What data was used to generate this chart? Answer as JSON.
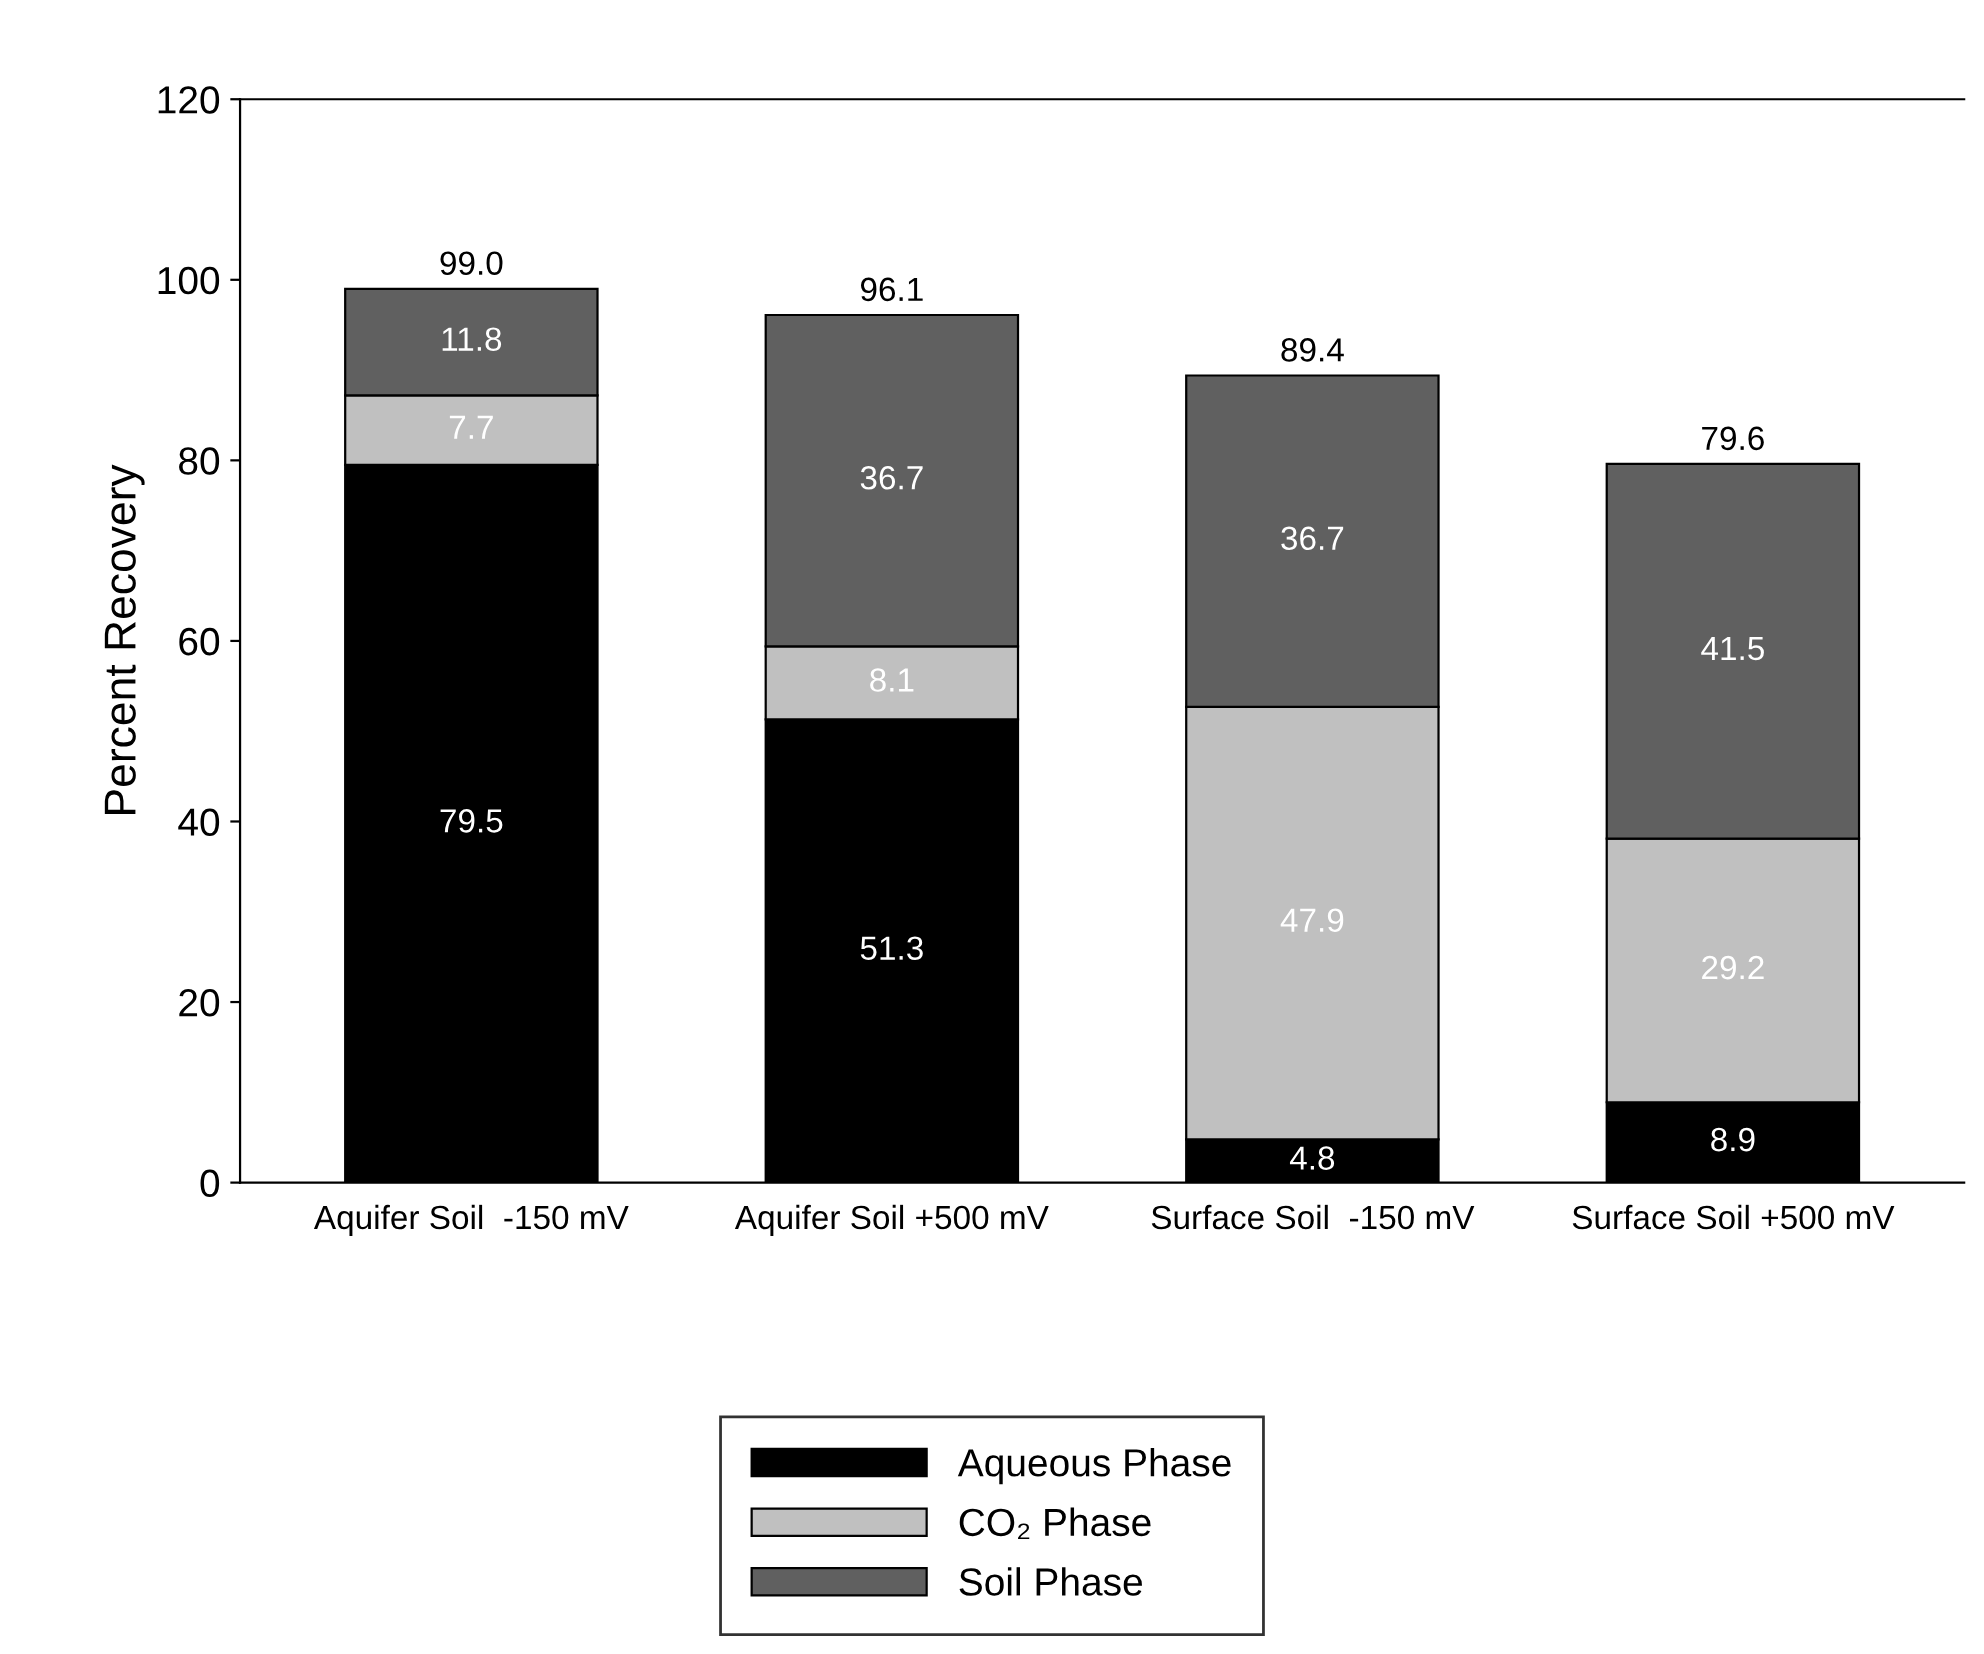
{
  "chart_data": {
    "type": "bar",
    "stacked": true,
    "ylabel": "Percent Recovery",
    "categories": [
      "Aquifer Soil  -150 mV",
      "Aquifer Soil +500 mV",
      "Surface Soil  -150 mV",
      "Surface Soil +500 mV"
    ],
    "series": [
      {
        "name": "Aqueous Phase",
        "color": "#000000",
        "values": [
          79.5,
          51.3,
          4.8,
          8.9
        ]
      },
      {
        "name": "CO₂ Phase",
        "color": "#c0c0c0",
        "values": [
          7.7,
          8.1,
          47.9,
          29.2
        ]
      },
      {
        "name": "Soil Phase",
        "color": "#606060",
        "values": [
          11.8,
          36.7,
          36.7,
          41.5
        ]
      }
    ],
    "totals": [
      "99.0",
      "96.1",
      "89.4",
      "79.6"
    ],
    "data_labels": true,
    "ylim": [
      0,
      120
    ],
    "yticks": [
      0,
      20,
      40,
      60,
      80,
      100,
      120
    ],
    "grid": false,
    "legend": "bottom"
  }
}
